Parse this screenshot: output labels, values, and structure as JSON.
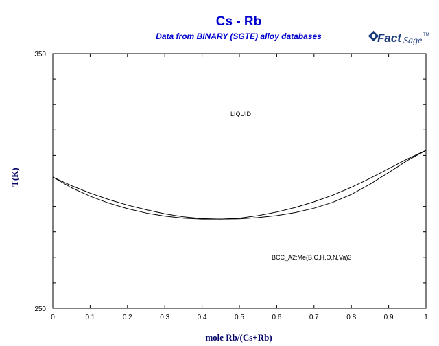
{
  "logo": {
    "fact": "Fact",
    "sage": "Sage",
    "tm": "TM",
    "color": "#1a3a7a"
  },
  "chart_data": {
    "type": "line",
    "title": "Cs - Rb",
    "subtitle": "Data from BINARY (SGTE) alloy databases",
    "xlabel": "mole Rb/(Cs+Rb)",
    "ylabel": "T(K)",
    "xlim": [
      0,
      1
    ],
    "ylim": [
      250,
      350
    ],
    "x_ticks": [
      0,
      0.1,
      0.2,
      0.3,
      0.4,
      0.5,
      0.6,
      0.7,
      0.8,
      0.9,
      1
    ],
    "x_tick_labels": [
      "0",
      "0.1",
      "0.2",
      "0.3",
      "0.4",
      "0.5",
      "0.6",
      "0.7",
      "0.8",
      "0.9",
      "1"
    ],
    "y_tick_labels": [
      "350",
      "250"
    ],
    "y_tick_values": [
      350,
      250
    ],
    "y_minor_ticks": [
      260,
      270,
      280,
      290,
      300,
      310,
      320,
      330,
      340
    ],
    "grid": false,
    "line_color": "#000000",
    "title_color": "#0000cc",
    "series": [
      {
        "x": [
          0,
          0.05,
          0.1,
          0.15,
          0.2,
          0.25,
          0.3,
          0.35,
          0.4,
          0.45,
          0.5,
          0.55,
          0.6,
          0.65,
          0.7,
          0.75,
          0.8,
          0.85,
          0.9,
          0.95,
          1
        ],
        "y": [
          301.5,
          298.1,
          295.2,
          292.7,
          290.5,
          288.7,
          287.1,
          285.9,
          285.2,
          285.0,
          285.4,
          286.4,
          287.8,
          289.6,
          291.8,
          294.4,
          297.5,
          301.0,
          304.8,
          308.6,
          312.0
        ]
      },
      {
        "x": [
          0,
          0.05,
          0.1,
          0.15,
          0.2,
          0.25,
          0.3,
          0.35,
          0.4,
          0.45,
          0.5,
          0.55,
          0.6,
          0.65,
          0.7,
          0.75,
          0.8,
          0.85,
          0.9,
          0.95,
          1
        ],
        "y": [
          301.5,
          297.3,
          294.0,
          291.3,
          289.1,
          287.4,
          286.2,
          285.4,
          285.0,
          285.0,
          285.1,
          285.6,
          286.4,
          287.6,
          289.3,
          291.6,
          294.7,
          298.7,
          303.3,
          308.0,
          312.0
        ]
      }
    ],
    "annotations": [
      {
        "text": "LIQUID",
        "x": 0.505,
        "y": 322.5
      },
      {
        "text": "BCC_A2:Me(B,C,H,O,N,Va)3",
        "x": 0.6,
        "y": 268.8
      }
    ]
  }
}
